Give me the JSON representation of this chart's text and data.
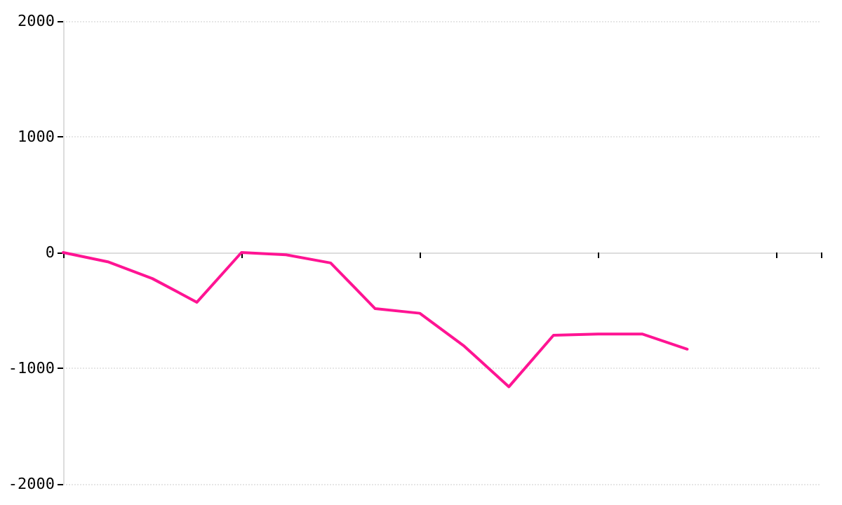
{
  "chart_data": {
    "type": "line",
    "categories": [
      null,
      null,
      null,
      null,
      null,
      null,
      null,
      null,
      null,
      null,
      null,
      null,
      null,
      null,
      null,
      null,
      null,
      null
    ],
    "values": [
      0,
      -80,
      -225,
      -430,
      0,
      -20,
      -90,
      -485,
      -525,
      -810,
      -1160,
      -715,
      -705,
      -705,
      -835,
      null,
      null,
      null
    ],
    "color": "#ff1493",
    "ylim": [
      -2000,
      2000
    ],
    "yticks": [
      -2000,
      -1000,
      0,
      1000,
      2000
    ],
    "grid": "y",
    "tick_labels": "y",
    "marker": "none",
    "line_style": "solid"
  }
}
